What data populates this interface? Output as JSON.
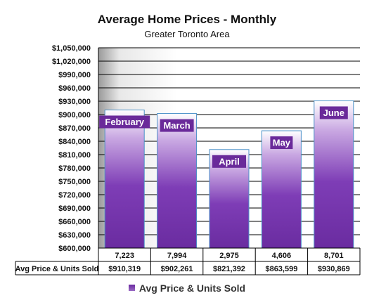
{
  "chart_data": {
    "type": "bar",
    "title": "Average Home Prices - Monthly",
    "subtitle": "Greater Toronto Area",
    "categories": [
      "February",
      "March",
      "April",
      "May",
      "June"
    ],
    "series": [
      {
        "name": "Avg Price & Units Sold",
        "values": [
          910319,
          902261,
          821392,
          863599,
          930869
        ]
      }
    ],
    "units_sold": [
      "7,223",
      "7,994",
      "2,975",
      "4,606",
      "8,701"
    ],
    "price_labels": [
      "$910,319",
      "$902,261",
      "$821,392",
      "$863,599",
      "$930,869"
    ],
    "y_ticks": [
      "$600,000",
      "$630,000",
      "$660,000",
      "$690,000",
      "$720,000",
      "$750,000",
      "$780,000",
      "$810,000",
      "$840,000",
      "$870,000",
      "$900,000",
      "$930,000",
      "$960,000",
      "$990,000",
      "$1,020,000",
      "$1,050,000"
    ],
    "ylim": [
      600000,
      1050000
    ],
    "legend": "Avg Price & Units Sold",
    "colors": {
      "bar_top": "#ffffff",
      "bar_mid": "#8e4fc2",
      "bar_bottom": "#6a2ca0",
      "bar_border": "#4a90c8",
      "label_bg": "#6a2a9a",
      "label_text": "#ffffff",
      "plot_bg_left": "#a0a0a0",
      "plot_bg_right": "#ffffff",
      "grid": "#000000"
    }
  }
}
